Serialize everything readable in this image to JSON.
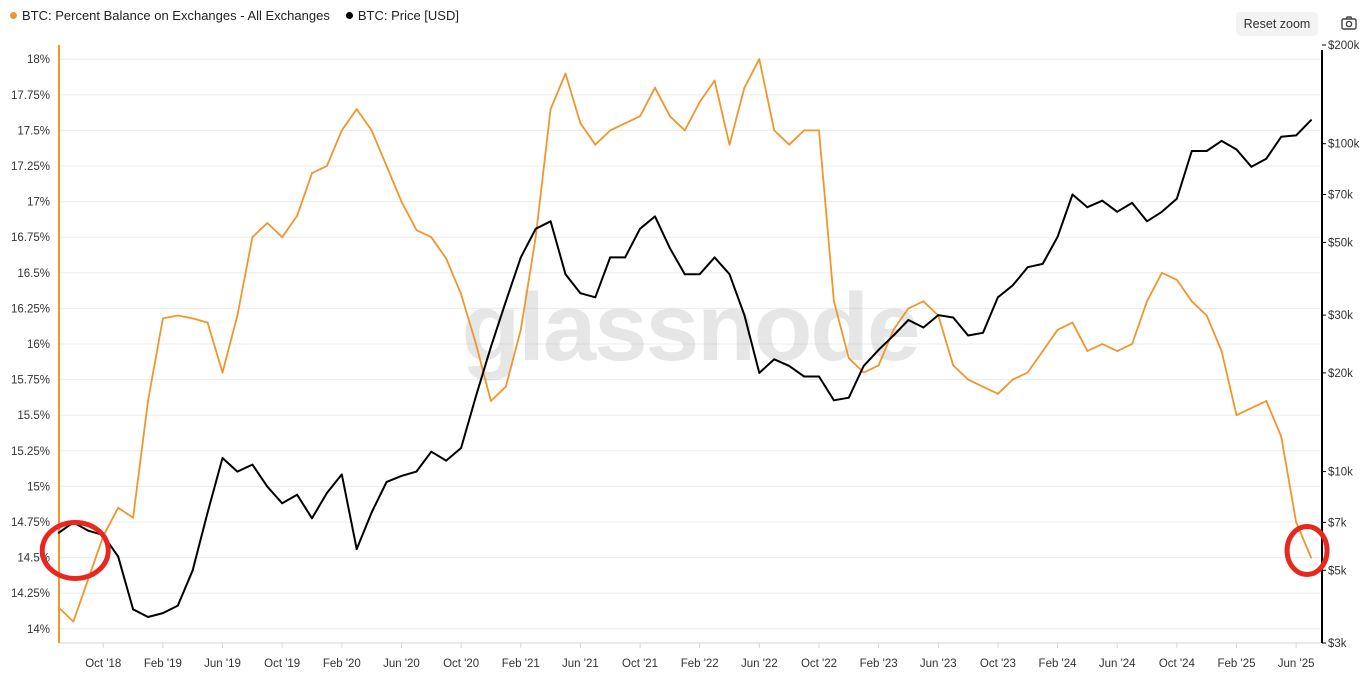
{
  "toolbar": {
    "reset_label": "Reset zoom",
    "camera_icon": "camera-icon"
  },
  "watermark": "glassnode",
  "colors": {
    "balance": "#f0962e",
    "price": "#000000",
    "annotation": "#e8281e",
    "grid": "#ececec"
  },
  "legend": [
    {
      "label": "BTC: Percent Balance on Exchanges - All Exchanges",
      "color": "#f0962e"
    },
    {
      "label": "BTC: Price [USD]",
      "color": "#000000"
    }
  ],
  "chart_data": {
    "type": "line",
    "x_start": "2018-07",
    "x_end": "2025-07",
    "x_ticks": [
      "Oct '18",
      "Feb '19",
      "Jun '19",
      "Oct '19",
      "Feb '20",
      "Jun '20",
      "Oct '20",
      "Feb '21",
      "Jun '21",
      "Oct '21",
      "Feb '22",
      "Jun '22",
      "Oct '22",
      "Feb '23",
      "Jun '23",
      "Oct '23",
      "Feb '24",
      "Jun '24",
      "Oct '24",
      "Feb '25",
      "Jun '25"
    ],
    "x_tick_dates": [
      "2018-10",
      "2019-02",
      "2019-06",
      "2019-10",
      "2020-02",
      "2020-06",
      "2020-10",
      "2021-02",
      "2021-06",
      "2021-10",
      "2022-02",
      "2022-06",
      "2022-10",
      "2023-02",
      "2023-06",
      "2023-10",
      "2024-02",
      "2024-06",
      "2024-10",
      "2025-02",
      "2025-06"
    ],
    "y_left": {
      "ticks": [
        "14%",
        "14.25%",
        "14.5%",
        "14.75%",
        "15%",
        "15.25%",
        "15.5%",
        "15.75%",
        "16%",
        "16.25%",
        "16.5%",
        "16.75%",
        "17%",
        "17.25%",
        "17.5%",
        "17.75%",
        "18%"
      ],
      "tick_values": [
        14,
        14.25,
        14.5,
        14.75,
        15,
        15.25,
        15.5,
        15.75,
        16,
        16.25,
        16.5,
        16.75,
        17,
        17.25,
        17.5,
        17.75,
        18
      ],
      "range": [
        13.9,
        18.1
      ]
    },
    "y_right": {
      "scale": "log",
      "ticks": [
        "$3k",
        "$5k",
        "$7k",
        "$10k",
        "$20k",
        "$30k",
        "$50k",
        "$70k",
        "$100k",
        "$200k"
      ],
      "tick_values": [
        3000,
        5000,
        7000,
        10000,
        20000,
        30000,
        50000,
        70000,
        100000,
        200000
      ]
    },
    "series": [
      {
        "name": "BTC: Percent Balance on Exchanges - All Exchanges",
        "axis": "left",
        "x": [
          "2018-07",
          "2018-08",
          "2018-09",
          "2018-10",
          "2018-11",
          "2018-12",
          "2019-01",
          "2019-02",
          "2019-03",
          "2019-04",
          "2019-05",
          "2019-06",
          "2019-07",
          "2019-08",
          "2019-09",
          "2019-10",
          "2019-11",
          "2019-12",
          "2020-01",
          "2020-02",
          "2020-03",
          "2020-04",
          "2020-05",
          "2020-06",
          "2020-07",
          "2020-08",
          "2020-09",
          "2020-10",
          "2020-11",
          "2020-12",
          "2021-01",
          "2021-02",
          "2021-03",
          "2021-04",
          "2021-05",
          "2021-06",
          "2021-07",
          "2021-08",
          "2021-09",
          "2021-10",
          "2021-11",
          "2021-12",
          "2022-01",
          "2022-02",
          "2022-03",
          "2022-04",
          "2022-05",
          "2022-06",
          "2022-07",
          "2022-08",
          "2022-09",
          "2022-10",
          "2022-11",
          "2022-12",
          "2023-01",
          "2023-02",
          "2023-03",
          "2023-04",
          "2023-05",
          "2023-06",
          "2023-07",
          "2023-08",
          "2023-09",
          "2023-10",
          "2023-11",
          "2023-12",
          "2024-01",
          "2024-02",
          "2024-03",
          "2024-04",
          "2024-05",
          "2024-06",
          "2024-07",
          "2024-08",
          "2024-09",
          "2024-10",
          "2024-11",
          "2024-12",
          "2025-01",
          "2025-02",
          "2025-03",
          "2025-04",
          "2025-05",
          "2025-06",
          "2025-07"
        ],
        "values": [
          14.15,
          14.05,
          14.35,
          14.65,
          14.85,
          14.78,
          15.6,
          16.18,
          16.2,
          16.18,
          16.15,
          15.8,
          16.2,
          16.75,
          16.85,
          16.75,
          16.9,
          17.2,
          17.25,
          17.5,
          17.65,
          17.5,
          17.25,
          17.0,
          16.8,
          16.75,
          16.6,
          16.35,
          16.0,
          15.6,
          15.7,
          16.1,
          16.75,
          17.65,
          17.9,
          17.55,
          17.4,
          17.5,
          17.55,
          17.6,
          17.8,
          17.6,
          17.5,
          17.7,
          17.85,
          17.4,
          17.8,
          18.0,
          17.5,
          17.4,
          17.5,
          17.5,
          16.3,
          15.9,
          15.8,
          15.85,
          16.1,
          16.25,
          16.3,
          16.2,
          15.85,
          15.75,
          15.7,
          15.65,
          15.75,
          15.8,
          15.95,
          16.1,
          16.15,
          15.95,
          16.0,
          15.95,
          16.0,
          16.3,
          16.5,
          16.45,
          16.3,
          16.2,
          15.95,
          15.5,
          15.55,
          15.6,
          15.35,
          14.75,
          14.5
        ],
        "color": "#f0962e"
      },
      {
        "name": "BTC: Price [USD]",
        "axis": "right",
        "x": [
          "2018-07",
          "2018-08",
          "2018-09",
          "2018-10",
          "2018-11",
          "2018-12",
          "2019-01",
          "2019-02",
          "2019-03",
          "2019-04",
          "2019-05",
          "2019-06",
          "2019-07",
          "2019-08",
          "2019-09",
          "2019-10",
          "2019-11",
          "2019-12",
          "2020-01",
          "2020-02",
          "2020-03",
          "2020-04",
          "2020-05",
          "2020-06",
          "2020-07",
          "2020-08",
          "2020-09",
          "2020-10",
          "2020-11",
          "2020-12",
          "2021-01",
          "2021-02",
          "2021-03",
          "2021-04",
          "2021-05",
          "2021-06",
          "2021-07",
          "2021-08",
          "2021-09",
          "2021-10",
          "2021-11",
          "2021-12",
          "2022-01",
          "2022-02",
          "2022-03",
          "2022-04",
          "2022-05",
          "2022-06",
          "2022-07",
          "2022-08",
          "2022-09",
          "2022-10",
          "2022-11",
          "2022-12",
          "2023-01",
          "2023-02",
          "2023-03",
          "2023-04",
          "2023-05",
          "2023-06",
          "2023-07",
          "2023-08",
          "2023-09",
          "2023-10",
          "2023-11",
          "2023-12",
          "2024-01",
          "2024-02",
          "2024-03",
          "2024-04",
          "2024-05",
          "2024-06",
          "2024-07",
          "2024-08",
          "2024-09",
          "2024-10",
          "2024-11",
          "2024-12",
          "2025-01",
          "2025-02",
          "2025-03",
          "2025-04",
          "2025-05",
          "2025-06",
          "2025-07"
        ],
        "values": [
          6500,
          7000,
          6600,
          6400,
          5500,
          3800,
          3600,
          3700,
          3900,
          5000,
          7500,
          11000,
          10000,
          10500,
          9000,
          8000,
          8500,
          7200,
          8600,
          9800,
          5800,
          7500,
          9300,
          9700,
          10000,
          11500,
          10800,
          11800,
          17000,
          24000,
          33000,
          45000,
          55000,
          58000,
          40000,
          35000,
          34000,
          45000,
          45000,
          55000,
          60000,
          48000,
          40000,
          40000,
          45000,
          40000,
          30000,
          20000,
          22000,
          21000,
          19500,
          19500,
          16500,
          16800,
          21000,
          23500,
          26000,
          29000,
          27500,
          30000,
          29500,
          26000,
          26500,
          34000,
          37000,
          42000,
          43000,
          52000,
          70000,
          64000,
          67000,
          62000,
          66000,
          58000,
          62000,
          68000,
          95000,
          95000,
          102000,
          96000,
          85000,
          90000,
          105000,
          106000,
          118000
        ],
        "color": "#000000"
      }
    ],
    "grid": true,
    "legend": "top-left"
  }
}
